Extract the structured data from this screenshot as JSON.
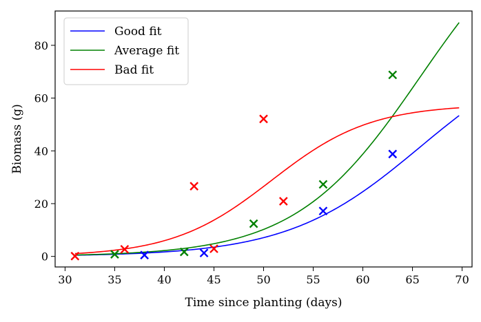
{
  "chart_data": {
    "type": "scatter",
    "title": "",
    "xlabel": "Time since planting (days)",
    "ylabel": "Biomass (g)",
    "xlim": [
      29,
      71
    ],
    "ylim": [
      -4,
      93
    ],
    "xticks": [
      30,
      35,
      40,
      45,
      50,
      55,
      60,
      65,
      70
    ],
    "yticks": [
      0,
      20,
      40,
      60,
      80
    ],
    "grid": false,
    "legend_position": "top-left",
    "series": [
      {
        "name": "Good fit",
        "color": "#0000ff",
        "curve": {
          "L": 83.1,
          "k": 0.15,
          "x0": 65.8,
          "x_start": 31,
          "x_end": 69.7
        },
        "points": [
          {
            "x": 38,
            "y": 0.5
          },
          {
            "x": 44,
            "y": 1.3
          },
          {
            "x": 56,
            "y": 17.2
          },
          {
            "x": 63,
            "y": 38.8
          }
        ]
      },
      {
        "name": "Average fit",
        "color": "#008000",
        "curve": {
          "L": 136.3,
          "k": 0.159,
          "x0": 65.8,
          "x_start": 31,
          "x_end": 69.7
        },
        "points": [
          {
            "x": 35,
            "y": 0.8
          },
          {
            "x": 42,
            "y": 1.7
          },
          {
            "x": 49,
            "y": 12.4
          },
          {
            "x": 56,
            "y": 27.3
          },
          {
            "x": 63,
            "y": 68.8
          }
        ]
      },
      {
        "name": "Bad fit",
        "color": "#ff0000",
        "curve": {
          "L": 57.6,
          "k": 0.2,
          "x0": 50.8,
          "x_start": 31,
          "x_end": 69.7
        },
        "points": [
          {
            "x": 31,
            "y": 0.1
          },
          {
            "x": 36,
            "y": 2.7
          },
          {
            "x": 43,
            "y": 26.6
          },
          {
            "x": 45,
            "y": 2.9
          },
          {
            "x": 50,
            "y": 52.1
          },
          {
            "x": 52,
            "y": 20.9
          }
        ]
      }
    ]
  }
}
